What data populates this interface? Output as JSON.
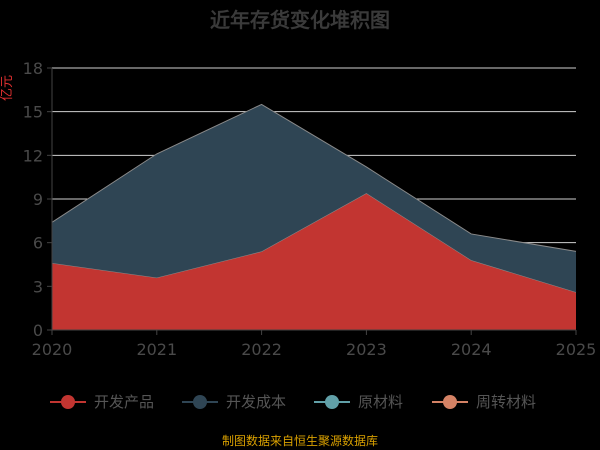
{
  "chart_data": {
    "type": "area",
    "stacked": true,
    "title": "近年存货变化堆积图",
    "unit": "亿元",
    "x": [
      "2020",
      "2021",
      "2022",
      "2023",
      "2024",
      "2025"
    ],
    "ylim": [
      0,
      18
    ],
    "yticks": [
      "0",
      "3",
      "6",
      "9",
      "12",
      "15",
      "18"
    ],
    "grid": true,
    "legend_position": "bottom",
    "series": [
      {
        "name": "开发产品",
        "values": [
          4.6,
          3.6,
          5.4,
          9.4,
          4.8,
          2.6
        ],
        "color": "#c23531"
      },
      {
        "name": "开发成本",
        "values": [
          2.8,
          8.5,
          10.1,
          1.8,
          1.8,
          2.8
        ],
        "color": "#2f4554"
      },
      {
        "name": "原材料",
        "values": [
          0,
          0,
          0,
          0,
          0,
          0
        ],
        "color": "#61a0a8"
      },
      {
        "name": "周转材料",
        "values": [
          0,
          0,
          0,
          0,
          0,
          0
        ],
        "color": "#d48265"
      }
    ],
    "source": "制图数据来自恒生聚源数据库"
  }
}
